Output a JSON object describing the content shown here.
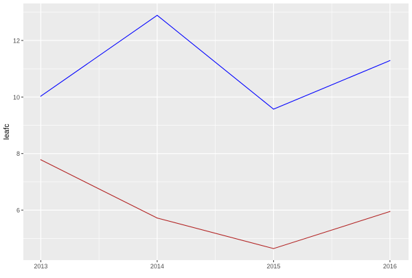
{
  "chart_data": {
    "type": "line",
    "title": "",
    "xlabel": "",
    "ylabel": "leafc",
    "x": [
      2013,
      2014,
      2015,
      2016
    ],
    "x_ticks": [
      "2013",
      "2014",
      "2015",
      "2016"
    ],
    "y_ticks": [
      "6",
      "8",
      "10",
      "12"
    ],
    "xlim": [
      2012.85,
      2016.16
    ],
    "ylim": [
      4.23,
      13.31
    ],
    "grid": true,
    "background": "#EBEBEB",
    "series": [
      {
        "color": "#0000FF",
        "values": [
          10.03,
          12.89,
          9.57,
          11.29
        ]
      },
      {
        "color": "#B22222",
        "values": [
          7.78,
          5.72,
          4.64,
          5.95
        ]
      }
    ]
  }
}
